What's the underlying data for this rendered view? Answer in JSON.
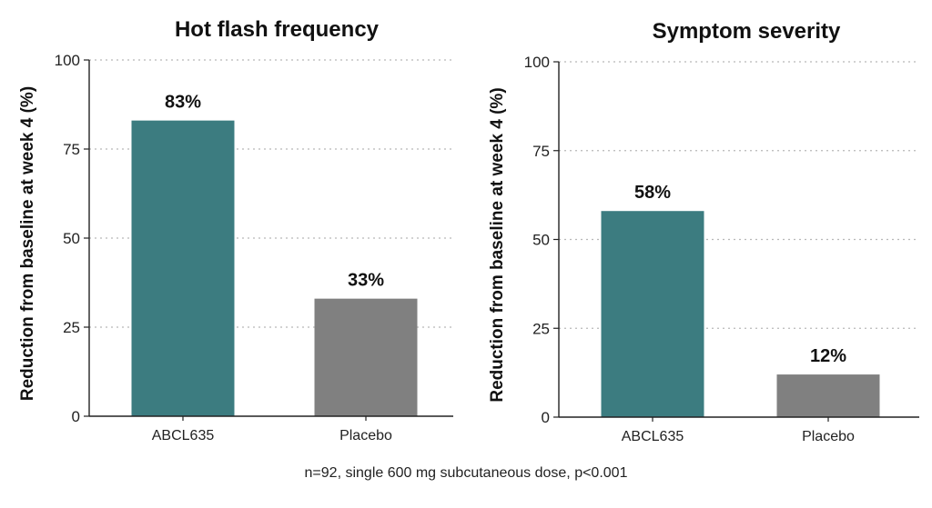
{
  "footnote": "n=92, single 600 mg subcutaneous dose, p<0.001",
  "colors": {
    "treatment": "#3c7c80",
    "placebo": "#808080",
    "grid": "#b8b8b8",
    "axis": "#222222"
  },
  "chart_data": [
    {
      "type": "bar",
      "title": "Hot flash frequency",
      "ylabel": "Reduction from baseline at week 4 (%)",
      "xlabel": "",
      "categories": [
        "ABCL635",
        "Placebo"
      ],
      "values": [
        83,
        33
      ],
      "data_labels": [
        "83%",
        "33%"
      ],
      "ylim": [
        0,
        100
      ],
      "yticks": [
        0,
        25,
        50,
        75,
        100
      ],
      "grid": "horizontal-dotted"
    },
    {
      "type": "bar",
      "title": "Symptom severity",
      "ylabel": "Reduction from baseline at week 4 (%)",
      "xlabel": "",
      "categories": [
        "ABCL635",
        "Placebo"
      ],
      "values": [
        58,
        12
      ],
      "data_labels": [
        "58%",
        "12%"
      ],
      "ylim": [
        0,
        100
      ],
      "yticks": [
        0,
        25,
        50,
        75,
        100
      ],
      "grid": "horizontal-dotted"
    }
  ]
}
